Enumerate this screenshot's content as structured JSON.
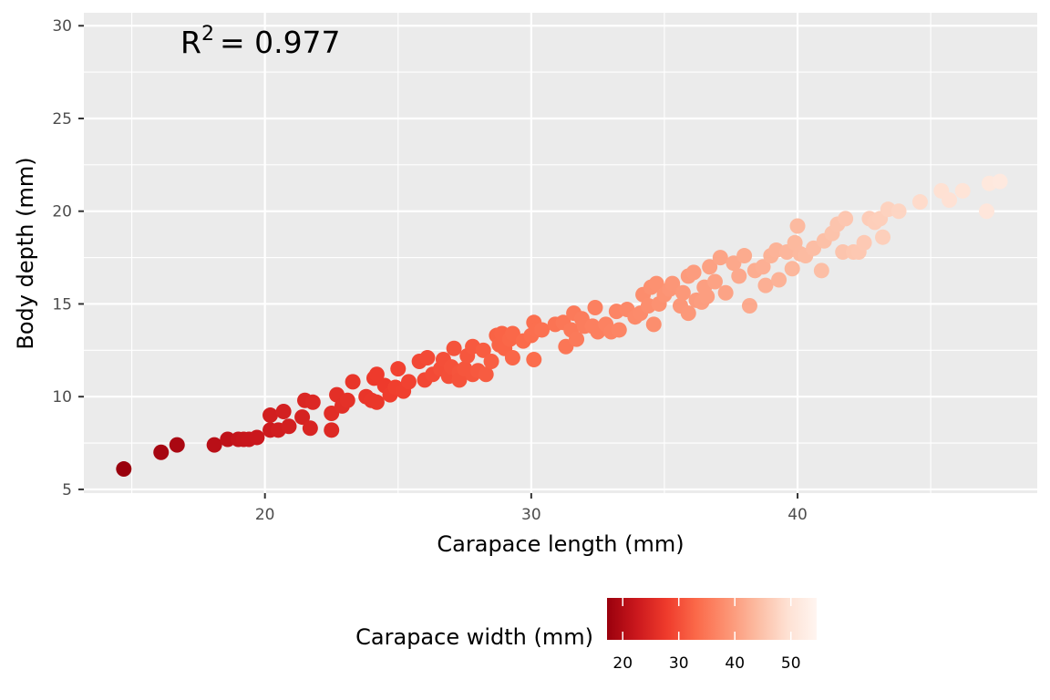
{
  "chart_data": {
    "type": "scatter",
    "xlabel": "Carapace length (mm)",
    "ylabel": "Body depth (mm)",
    "xlim": [
      13.2,
      49.0
    ],
    "ylim": [
      4.8,
      30.7
    ],
    "x_ticks": [
      20,
      30,
      40
    ],
    "y_ticks": [
      5,
      10,
      15,
      20,
      25,
      30
    ],
    "grid": true,
    "panel_background": "#ebebeb",
    "annotation": {
      "base": "R",
      "superscript": "2",
      "text": "= 0.977"
    },
    "color_legend": {
      "title": "Carapace width (mm)",
      "position": "bottom",
      "min": 17.2,
      "max": 54.6,
      "ticks": [
        20,
        30,
        40,
        50
      ],
      "palette": [
        "#99000d",
        "#cb181d",
        "#ef3b2c",
        "#fb6a4a",
        "#fc9272",
        "#fcbba1",
        "#fee0d2",
        "#fff5f0"
      ]
    },
    "points": [
      [
        14.7,
        6.1,
        17.2
      ],
      [
        16.1,
        7.0,
        18.6
      ],
      [
        16.7,
        7.4,
        19.0
      ],
      [
        18.1,
        7.4,
        20.6
      ],
      [
        18.6,
        7.7,
        21.3
      ],
      [
        19.0,
        7.7,
        21.8
      ],
      [
        19.2,
        7.7,
        22.0
      ],
      [
        19.4,
        7.7,
        22.2
      ],
      [
        19.7,
        7.8,
        22.4
      ],
      [
        20.2,
        8.2,
        22.9
      ],
      [
        20.5,
        8.2,
        23.3
      ],
      [
        20.2,
        9.0,
        23.4
      ],
      [
        20.7,
        9.2,
        23.8
      ],
      [
        20.9,
        8.4,
        23.6
      ],
      [
        21.4,
        8.9,
        24.1
      ],
      [
        21.5,
        9.8,
        24.7
      ],
      [
        21.8,
        9.7,
        25.0
      ],
      [
        21.7,
        8.3,
        24.4
      ],
      [
        22.5,
        8.2,
        25.2
      ],
      [
        22.5,
        9.1,
        25.8
      ],
      [
        22.7,
        10.1,
        26.1
      ],
      [
        22.9,
        9.5,
        26.0
      ],
      [
        23.1,
        9.8,
        26.3
      ],
      [
        23.3,
        10.8,
        26.9
      ],
      [
        23.8,
        10.0,
        27.0
      ],
      [
        24.0,
        9.8,
        27.1
      ],
      [
        24.2,
        9.7,
        27.2
      ],
      [
        24.1,
        11.0,
        27.6
      ],
      [
        24.2,
        11.2,
        27.8
      ],
      [
        24.5,
        10.6,
        27.8
      ],
      [
        24.7,
        10.1,
        28.0
      ],
      [
        24.9,
        10.5,
        28.3
      ],
      [
        25.0,
        11.5,
        28.6
      ],
      [
        25.2,
        10.3,
        28.4
      ],
      [
        25.4,
        10.8,
        28.7
      ],
      [
        25.8,
        11.9,
        29.4
      ],
      [
        26.0,
        10.9,
        29.3
      ],
      [
        26.1,
        12.1,
        29.6
      ],
      [
        26.3,
        11.2,
        29.6
      ],
      [
        26.6,
        11.5,
        30.0
      ],
      [
        26.7,
        12.0,
        30.2
      ],
      [
        26.9,
        11.1,
        30.2
      ],
      [
        27.0,
        11.6,
        30.4
      ],
      [
        27.1,
        12.6,
        30.6
      ],
      [
        27.3,
        11.3,
        30.7
      ],
      [
        27.3,
        10.9,
        30.6
      ],
      [
        27.5,
        11.5,
        30.9
      ],
      [
        27.6,
        12.2,
        31.1
      ],
      [
        27.8,
        12.7,
        31.3
      ],
      [
        27.8,
        11.2,
        31.0
      ],
      [
        28.0,
        11.4,
        31.3
      ],
      [
        28.2,
        12.5,
        31.7
      ],
      [
        28.3,
        11.2,
        31.6
      ],
      [
        28.5,
        11.9,
        32.0
      ],
      [
        28.7,
        13.3,
        32.4
      ],
      [
        28.8,
        12.8,
        32.5
      ],
      [
        29.0,
        12.6,
        32.6
      ],
      [
        28.9,
        13.4,
        32.6
      ],
      [
        29.2,
        13.1,
        32.9
      ],
      [
        29.3,
        13.4,
        33.0
      ],
      [
        29.3,
        12.1,
        32.8
      ],
      [
        29.7,
        13.0,
        33.4
      ],
      [
        30.0,
        13.3,
        33.7
      ],
      [
        30.1,
        14.0,
        33.9
      ],
      [
        30.2,
        13.6,
        33.9
      ],
      [
        30.1,
        12.0,
        33.6
      ],
      [
        30.4,
        13.6,
        34.2
      ],
      [
        30.9,
        13.9,
        34.6
      ],
      [
        31.2,
        14.0,
        34.9
      ],
      [
        31.3,
        12.7,
        34.8
      ],
      [
        31.5,
        13.6,
        35.2
      ],
      [
        31.6,
        14.5,
        35.3
      ],
      [
        31.7,
        13.1,
        35.4
      ],
      [
        31.9,
        14.2,
        35.6
      ],
      [
        32.0,
        13.8,
        35.7
      ],
      [
        32.3,
        13.8,
        36.0
      ],
      [
        32.4,
        14.8,
        36.2
      ],
      [
        32.5,
        13.5,
        36.1
      ],
      [
        32.8,
        13.9,
        36.5
      ],
      [
        33.0,
        13.5,
        36.6
      ],
      [
        33.2,
        14.6,
        36.8
      ],
      [
        33.3,
        13.6,
        36.9
      ],
      [
        33.6,
        14.7,
        37.2
      ],
      [
        33.9,
        14.3,
        37.5
      ],
      [
        34.1,
        14.5,
        37.7
      ],
      [
        34.2,
        15.5,
        37.9
      ],
      [
        34.4,
        14.9,
        38.1
      ],
      [
        34.5,
        15.9,
        38.3
      ],
      [
        34.6,
        13.9,
        38.1
      ],
      [
        34.7,
        16.1,
        38.5
      ],
      [
        34.8,
        15.0,
        38.5
      ],
      [
        35.0,
        15.5,
        38.7
      ],
      [
        35.2,
        15.8,
        39.0
      ],
      [
        35.3,
        16.1,
        39.1
      ],
      [
        35.6,
        14.9,
        39.2
      ],
      [
        35.7,
        15.6,
        39.4
      ],
      [
        35.9,
        16.5,
        39.7
      ],
      [
        35.9,
        14.5,
        39.4
      ],
      [
        36.1,
        16.7,
        39.9
      ],
      [
        36.2,
        15.2,
        39.8
      ],
      [
        36.4,
        15.1,
        40.0
      ],
      [
        36.5,
        15.9,
        40.2
      ],
      [
        36.6,
        15.4,
        40.2
      ],
      [
        36.7,
        17.0,
        40.5
      ],
      [
        36.9,
        16.2,
        40.6
      ],
      [
        37.1,
        17.5,
        40.9
      ],
      [
        37.3,
        15.6,
        40.8
      ],
      [
        37.6,
        17.2,
        41.4
      ],
      [
        37.8,
        16.5,
        41.5
      ],
      [
        38.0,
        17.6,
        41.8
      ],
      [
        38.2,
        14.9,
        41.6
      ],
      [
        38.4,
        16.8,
        42.1
      ],
      [
        38.7,
        17.0,
        42.4
      ],
      [
        38.8,
        16.0,
        42.4
      ],
      [
        39.0,
        17.6,
        42.7
      ],
      [
        39.2,
        17.9,
        42.9
      ],
      [
        39.3,
        16.3,
        42.8
      ],
      [
        39.6,
        17.8,
        43.3
      ],
      [
        39.8,
        16.9,
        43.4
      ],
      [
        39.9,
        18.3,
        43.6
      ],
      [
        40.0,
        19.2,
        43.8
      ],
      [
        40.1,
        17.7,
        43.7
      ],
      [
        40.3,
        17.6,
        43.9
      ],
      [
        40.6,
        18.0,
        44.2
      ],
      [
        40.9,
        16.8,
        44.3
      ],
      [
        41.0,
        18.4,
        44.6
      ],
      [
        41.3,
        18.8,
        45.0
      ],
      [
        41.5,
        19.3,
        45.2
      ],
      [
        41.7,
        17.8,
        45.2
      ],
      [
        41.8,
        19.6,
        45.5
      ],
      [
        42.1,
        17.8,
        45.6
      ],
      [
        42.3,
        17.8,
        45.8
      ],
      [
        42.5,
        18.3,
        46.0
      ],
      [
        42.7,
        19.6,
        46.4
      ],
      [
        42.9,
        19.4,
        46.6
      ],
      [
        43.1,
        19.6,
        46.8
      ],
      [
        43.2,
        18.6,
        46.8
      ],
      [
        43.4,
        20.1,
        47.2
      ],
      [
        43.8,
        20.0,
        47.6
      ],
      [
        44.6,
        20.5,
        48.5
      ],
      [
        45.4,
        21.1,
        49.4
      ],
      [
        45.7,
        20.6,
        49.6
      ],
      [
        46.2,
        21.1,
        50.2
      ],
      [
        47.1,
        20.0,
        50.9
      ],
      [
        47.2,
        21.5,
        51.2
      ],
      [
        47.6,
        21.6,
        51.6
      ]
    ]
  }
}
